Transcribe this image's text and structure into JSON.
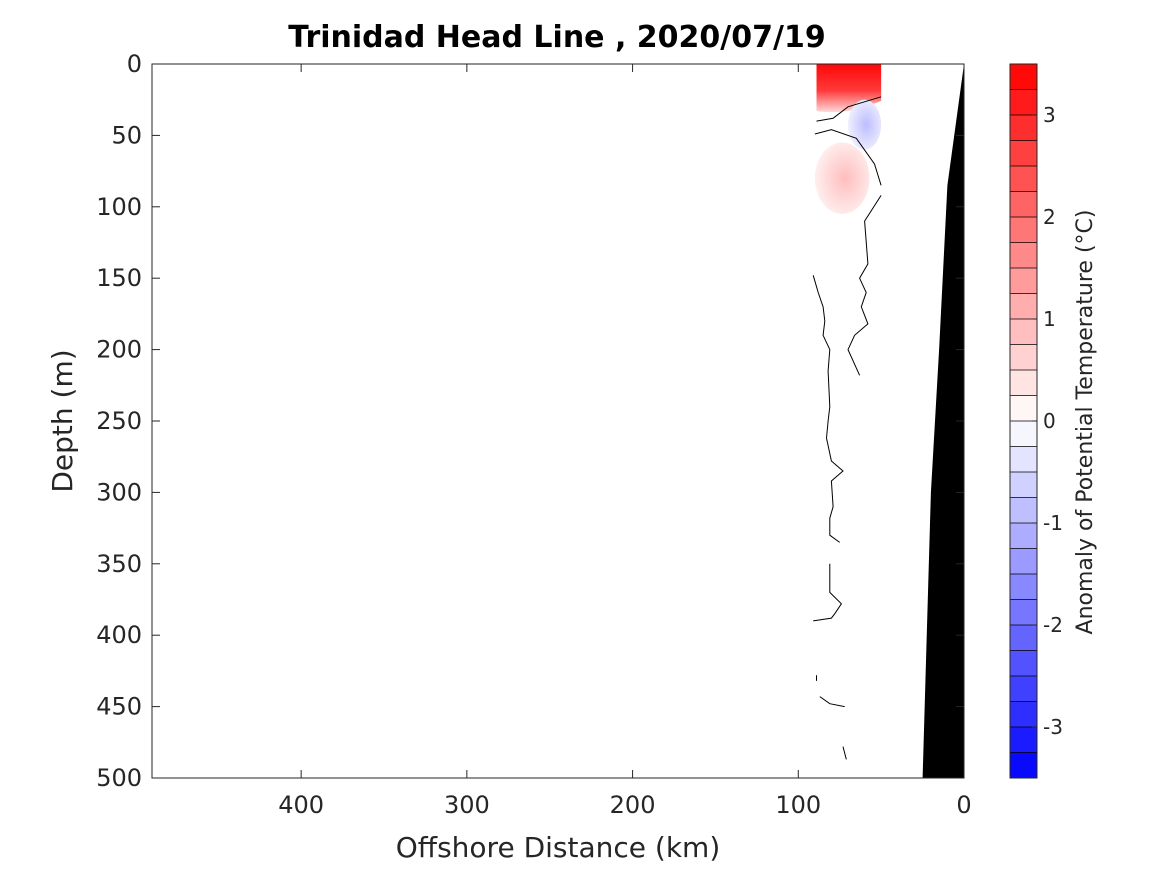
{
  "chart_data": {
    "type": "heatmap",
    "subtype": "filled-contour-section",
    "title": "Trinidad Head Line , 2020/07/19",
    "xlabel": "Offshore Distance (km)",
    "ylabel": "Depth (m)",
    "xlim": [
      490,
      0
    ],
    "x_reversed": true,
    "ylim": [
      0,
      500
    ],
    "y_reversed": true,
    "xticks": [
      400,
      300,
      200,
      100,
      0
    ],
    "yticks": [
      0,
      50,
      100,
      150,
      200,
      250,
      300,
      350,
      400,
      450,
      500
    ],
    "grid": false,
    "colorbar": {
      "label": "Anomaly of Potential Temperature (°C)",
      "range": [
        -3.5,
        3.5
      ],
      "step": 0.25,
      "ticks": [
        3,
        2,
        1,
        0,
        -1,
        -2,
        -3
      ],
      "colormap": "blue-white-red",
      "color_low": "#0000ff",
      "color_mid": "#ffffff",
      "color_high": "#ff0000"
    },
    "anomaly_regions": [
      {
        "label": "warm surface layer",
        "x": [
          89,
          50
        ],
        "depth": [
          0,
          30
        ],
        "max_anomaly": 3.4
      },
      {
        "label": "cool patch",
        "x": [
          70,
          50
        ],
        "depth": [
          25,
          60
        ],
        "min_anomaly": -0.9
      },
      {
        "label": "warm patch",
        "x": [
          90,
          57
        ],
        "depth": [
          55,
          105
        ],
        "max_anomaly": 0.9
      }
    ],
    "zero_contours": [
      [
        [
          89,
          40
        ],
        [
          79,
          38
        ],
        [
          70,
          30
        ],
        [
          50,
          23
        ]
      ],
      [
        [
          50,
          85
        ],
        [
          54,
          70
        ],
        [
          65,
          52
        ],
        [
          80,
          46
        ],
        [
          90,
          49
        ]
      ],
      [
        [
          50,
          92
        ],
        [
          60,
          110
        ],
        [
          58,
          140
        ],
        [
          63,
          150
        ],
        [
          59,
          160
        ],
        [
          62,
          170
        ],
        [
          58,
          182
        ],
        [
          66,
          190
        ],
        [
          70,
          200
        ],
        [
          63,
          218
        ]
      ],
      [
        [
          91,
          148
        ],
        [
          88,
          160
        ],
        [
          85,
          170
        ],
        [
          84,
          180
        ],
        [
          85,
          190
        ],
        [
          81,
          200
        ],
        [
          82,
          215
        ],
        [
          81,
          240
        ],
        [
          82,
          250
        ],
        [
          83,
          262
        ],
        [
          80,
          278
        ],
        [
          73,
          285
        ],
        [
          80,
          292
        ],
        [
          79,
          310
        ],
        [
          81,
          318
        ],
        [
          81,
          330
        ],
        [
          75,
          335
        ]
      ],
      [
        [
          81,
          350
        ],
        [
          81,
          370
        ],
        [
          74,
          378
        ],
        [
          78,
          385
        ],
        [
          80,
          388
        ],
        [
          91,
          390
        ]
      ],
      [
        [
          89,
          428
        ],
        [
          89,
          432
        ]
      ],
      [
        [
          87,
          443
        ],
        [
          81,
          448
        ],
        [
          72,
          450
        ]
      ],
      [
        [
          73,
          478
        ],
        [
          71,
          487
        ]
      ]
    ],
    "bathymetry": [
      [
        0,
        0
      ],
      [
        10,
        85
      ],
      [
        15,
        200
      ],
      [
        20,
        300
      ],
      [
        25,
        500
      ]
    ],
    "bathymetry_color": "#000000"
  }
}
